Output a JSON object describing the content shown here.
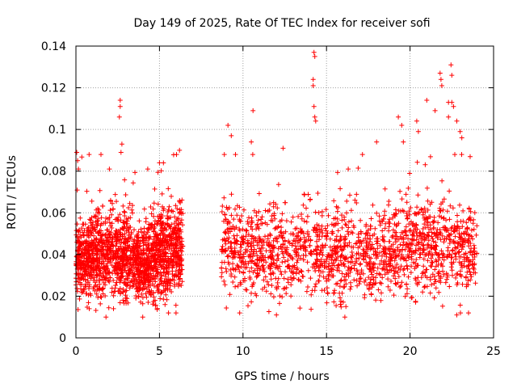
{
  "chart_data": {
    "type": "scatter",
    "title": "Day 149 of 2025, Rate Of TEC Index for receiver sofi",
    "xlabel": "GPS time / hours",
    "ylabel": "ROTI / TECUs",
    "xlim": [
      0,
      25
    ],
    "ylim": [
      0,
      0.14
    ],
    "xticks": [
      0,
      5,
      10,
      15,
      20,
      25
    ],
    "xtick_labels": [
      "0",
      "5",
      "10",
      "15",
      "20",
      "25"
    ],
    "yticks": [
      0,
      0.02,
      0.04,
      0.06,
      0.08,
      0.1,
      0.12,
      0.14
    ],
    "ytick_labels": [
      "0",
      "0.02",
      "0.04",
      "0.06",
      "0.08",
      "0.1",
      "0.12",
      "0.14"
    ],
    "grid": true,
    "marker": "+",
    "marker_color": "#ff0000",
    "series": [
      {
        "name": "ROTI",
        "segments": [
          [
            0.0,
            6.4
          ],
          [
            8.7,
            24.0
          ]
        ],
        "baseline_profile": {
          "x": [
            0,
            1,
            2,
            3,
            4,
            5,
            6,
            9,
            10,
            11,
            12,
            13,
            14,
            15,
            16,
            17,
            18,
            19,
            20,
            21,
            22,
            23,
            24
          ],
          "median": [
            0.038,
            0.04,
            0.041,
            0.039,
            0.036,
            0.041,
            0.043,
            0.046,
            0.044,
            0.041,
            0.042,
            0.041,
            0.043,
            0.041,
            0.039,
            0.04,
            0.041,
            0.043,
            0.045,
            0.044,
            0.046,
            0.043,
            0.04
          ],
          "spread": [
            0.01,
            0.011,
            0.012,
            0.011,
            0.01,
            0.013,
            0.013,
            0.013,
            0.012,
            0.012,
            0.012,
            0.012,
            0.013,
            0.012,
            0.012,
            0.012,
            0.012,
            0.012,
            0.013,
            0.013,
            0.013,
            0.013,
            0.011
          ]
        },
        "peaks": [
          {
            "x": 0.05,
            "y": 0.089
          },
          {
            "x": 0.1,
            "y": 0.085
          },
          {
            "x": 0.15,
            "y": 0.081
          },
          {
            "x": 1.5,
            "y": 0.088
          },
          {
            "x": 2.0,
            "y": 0.081
          },
          {
            "x": 2.65,
            "y": 0.114
          },
          {
            "x": 2.65,
            "y": 0.111
          },
          {
            "x": 2.6,
            "y": 0.106
          },
          {
            "x": 2.75,
            "y": 0.093
          },
          {
            "x": 2.7,
            "y": 0.089
          },
          {
            "x": 4.3,
            "y": 0.081
          },
          {
            "x": 5.0,
            "y": 0.084
          },
          {
            "x": 6.2,
            "y": 0.09
          },
          {
            "x": 9.1,
            "y": 0.102
          },
          {
            "x": 9.3,
            "y": 0.097
          },
          {
            "x": 10.6,
            "y": 0.109
          },
          {
            "x": 10.5,
            "y": 0.094
          },
          {
            "x": 12.4,
            "y": 0.091
          },
          {
            "x": 14.25,
            "y": 0.137
          },
          {
            "x": 14.3,
            "y": 0.135
          },
          {
            "x": 14.2,
            "y": 0.124
          },
          {
            "x": 14.2,
            "y": 0.121
          },
          {
            "x": 14.25,
            "y": 0.111
          },
          {
            "x": 14.3,
            "y": 0.106
          },
          {
            "x": 14.35,
            "y": 0.104
          },
          {
            "x": 16.3,
            "y": 0.081
          },
          {
            "x": 18.0,
            "y": 0.094
          },
          {
            "x": 19.3,
            "y": 0.106
          },
          {
            "x": 19.5,
            "y": 0.102
          },
          {
            "x": 19.6,
            "y": 0.094
          },
          {
            "x": 20.4,
            "y": 0.104
          },
          {
            "x": 20.5,
            "y": 0.099
          },
          {
            "x": 21.0,
            "y": 0.114
          },
          {
            "x": 21.5,
            "y": 0.109
          },
          {
            "x": 21.8,
            "y": 0.127
          },
          {
            "x": 21.85,
            "y": 0.124
          },
          {
            "x": 21.9,
            "y": 0.121
          },
          {
            "x": 22.45,
            "y": 0.131
          },
          {
            "x": 22.5,
            "y": 0.126
          },
          {
            "x": 22.3,
            "y": 0.113
          },
          {
            "x": 22.5,
            "y": 0.113
          },
          {
            "x": 22.6,
            "y": 0.111
          },
          {
            "x": 22.3,
            "y": 0.106
          },
          {
            "x": 22.8,
            "y": 0.104
          },
          {
            "x": 23.0,
            "y": 0.099
          },
          {
            "x": 23.1,
            "y": 0.096
          },
          {
            "x": 23.6,
            "y": 0.087
          }
        ],
        "min_values": [
          {
            "x": 0.8,
            "y": 0.014
          },
          {
            "x": 1.8,
            "y": 0.01
          },
          {
            "x": 4.0,
            "y": 0.01
          },
          {
            "x": 9.8,
            "y": 0.012
          },
          {
            "x": 12.0,
            "y": 0.011
          },
          {
            "x": 16.1,
            "y": 0.01
          },
          {
            "x": 22.8,
            "y": 0.011
          },
          {
            "x": 23.5,
            "y": 0.012
          }
        ]
      }
    ]
  }
}
